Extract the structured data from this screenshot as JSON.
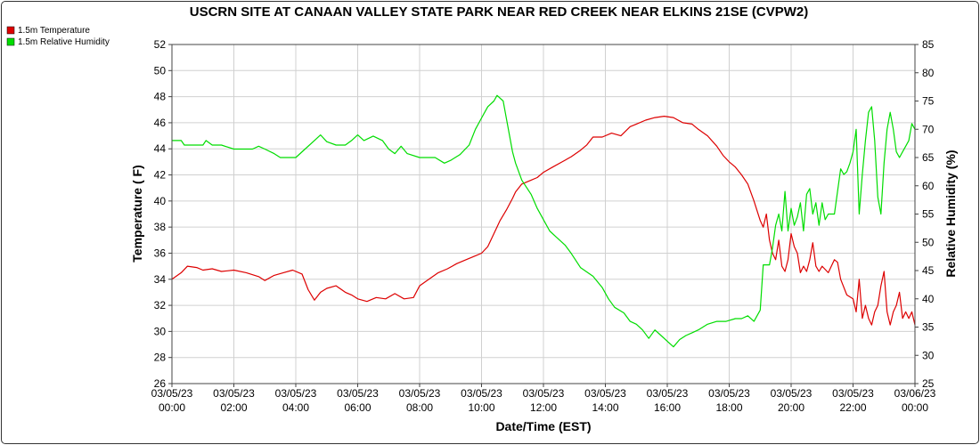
{
  "chart_data": {
    "type": "line",
    "title": "USCRN SITE AT CANAAN VALLEY STATE PARK NEAR RED CREEK NEAR ELKINS 21SE (CVPW2)",
    "xlabel": "Date/Time (EST)",
    "ylabel_left": "Temperature ( F)",
    "ylabel_right": "Relative Humidity (%)",
    "legend_position": "top-left",
    "grid": true,
    "x_range_hours": [
      0,
      24
    ],
    "y_left_range": [
      26,
      52
    ],
    "y_right_range": [
      25,
      85
    ],
    "x_ticks": [
      {
        "hour": 0,
        "date": "03/05/23",
        "time": "00:00"
      },
      {
        "hour": 2,
        "date": "03/05/23",
        "time": "02:00"
      },
      {
        "hour": 4,
        "date": "03/05/23",
        "time": "04:00"
      },
      {
        "hour": 6,
        "date": "03/05/23",
        "time": "06:00"
      },
      {
        "hour": 8,
        "date": "03/05/23",
        "time": "08:00"
      },
      {
        "hour": 10,
        "date": "03/05/23",
        "time": "10:00"
      },
      {
        "hour": 12,
        "date": "03/05/23",
        "time": "12:00"
      },
      {
        "hour": 14,
        "date": "03/05/23",
        "time": "14:00"
      },
      {
        "hour": 16,
        "date": "03/05/23",
        "time": "16:00"
      },
      {
        "hour": 18,
        "date": "03/05/23",
        "time": "18:00"
      },
      {
        "hour": 20,
        "date": "03/05/23",
        "time": "20:00"
      },
      {
        "hour": 22,
        "date": "03/05/23",
        "time": "22:00"
      },
      {
        "hour": 24,
        "date": "03/06/23",
        "time": "00:00"
      }
    ],
    "y_left_ticks": [
      26,
      28,
      30,
      32,
      34,
      36,
      38,
      40,
      42,
      44,
      46,
      48,
      50,
      52
    ],
    "y_right_ticks": [
      25,
      30,
      35,
      40,
      45,
      50,
      55,
      60,
      65,
      70,
      75,
      80,
      85
    ],
    "series": [
      {
        "name": "1.5m Temperature",
        "color": "#dd0000",
        "axis": "left",
        "points": [
          [
            0.0,
            34.0
          ],
          [
            0.3,
            34.5
          ],
          [
            0.5,
            35.0
          ],
          [
            0.8,
            34.9
          ],
          [
            1.0,
            34.7
          ],
          [
            1.3,
            34.8
          ],
          [
            1.6,
            34.6
          ],
          [
            2.0,
            34.7
          ],
          [
            2.4,
            34.5
          ],
          [
            2.8,
            34.2
          ],
          [
            3.0,
            33.9
          ],
          [
            3.3,
            34.3
          ],
          [
            3.6,
            34.5
          ],
          [
            3.9,
            34.7
          ],
          [
            4.2,
            34.4
          ],
          [
            4.4,
            33.2
          ],
          [
            4.6,
            32.4
          ],
          [
            4.8,
            33.0
          ],
          [
            5.0,
            33.3
          ],
          [
            5.3,
            33.5
          ],
          [
            5.6,
            33.0
          ],
          [
            5.8,
            32.8
          ],
          [
            6.0,
            32.5
          ],
          [
            6.3,
            32.3
          ],
          [
            6.6,
            32.6
          ],
          [
            6.9,
            32.5
          ],
          [
            7.2,
            32.9
          ],
          [
            7.5,
            32.5
          ],
          [
            7.8,
            32.6
          ],
          [
            8.0,
            33.5
          ],
          [
            8.3,
            34.0
          ],
          [
            8.6,
            34.5
          ],
          [
            8.9,
            34.8
          ],
          [
            9.2,
            35.2
          ],
          [
            9.5,
            35.5
          ],
          [
            9.8,
            35.8
          ],
          [
            10.0,
            36.0
          ],
          [
            10.2,
            36.5
          ],
          [
            10.4,
            37.5
          ],
          [
            10.6,
            38.5
          ],
          [
            10.8,
            39.3
          ],
          [
            11.0,
            40.2
          ],
          [
            11.1,
            40.7
          ],
          [
            11.3,
            41.3
          ],
          [
            11.6,
            41.6
          ],
          [
            11.8,
            41.8
          ],
          [
            12.0,
            42.2
          ],
          [
            12.3,
            42.6
          ],
          [
            12.6,
            43.0
          ],
          [
            12.9,
            43.4
          ],
          [
            13.2,
            43.9
          ],
          [
            13.4,
            44.3
          ],
          [
            13.6,
            44.9
          ],
          [
            13.9,
            44.9
          ],
          [
            14.2,
            45.2
          ],
          [
            14.5,
            45.0
          ],
          [
            14.8,
            45.7
          ],
          [
            15.0,
            45.9
          ],
          [
            15.3,
            46.2
          ],
          [
            15.6,
            46.4
          ],
          [
            15.9,
            46.5
          ],
          [
            16.2,
            46.4
          ],
          [
            16.5,
            46.0
          ],
          [
            16.8,
            45.9
          ],
          [
            17.0,
            45.5
          ],
          [
            17.3,
            45.0
          ],
          [
            17.6,
            44.2
          ],
          [
            17.8,
            43.5
          ],
          [
            18.0,
            43.0
          ],
          [
            18.2,
            42.6
          ],
          [
            18.4,
            42.0
          ],
          [
            18.6,
            41.3
          ],
          [
            18.8,
            40.0
          ],
          [
            19.0,
            38.5
          ],
          [
            19.1,
            38.0
          ],
          [
            19.2,
            39.0
          ],
          [
            19.3,
            37.0
          ],
          [
            19.4,
            36.0
          ],
          [
            19.5,
            35.5
          ],
          [
            19.6,
            37.0
          ],
          [
            19.7,
            35.0
          ],
          [
            19.8,
            34.6
          ],
          [
            19.9,
            35.5
          ],
          [
            20.0,
            37.5
          ],
          [
            20.1,
            36.5
          ],
          [
            20.2,
            36.0
          ],
          [
            20.3,
            34.5
          ],
          [
            20.4,
            35.0
          ],
          [
            20.5,
            34.6
          ],
          [
            20.6,
            35.5
          ],
          [
            20.7,
            36.8
          ],
          [
            20.8,
            35.0
          ],
          [
            20.9,
            34.6
          ],
          [
            21.0,
            35.0
          ],
          [
            21.2,
            34.5
          ],
          [
            21.4,
            35.5
          ],
          [
            21.5,
            35.3
          ],
          [
            21.6,
            34.0
          ],
          [
            21.8,
            32.8
          ],
          [
            22.0,
            32.5
          ],
          [
            22.1,
            31.5
          ],
          [
            22.2,
            34.0
          ],
          [
            22.3,
            31.0
          ],
          [
            22.4,
            32.0
          ],
          [
            22.5,
            31.0
          ],
          [
            22.6,
            30.5
          ],
          [
            22.7,
            31.5
          ],
          [
            22.8,
            32.0
          ],
          [
            22.9,
            33.5
          ],
          [
            23.0,
            34.6
          ],
          [
            23.1,
            31.5
          ],
          [
            23.2,
            30.5
          ],
          [
            23.3,
            31.5
          ],
          [
            23.4,
            32.0
          ],
          [
            23.5,
            33.0
          ],
          [
            23.6,
            31.0
          ],
          [
            23.7,
            31.5
          ],
          [
            23.8,
            31.0
          ],
          [
            23.9,
            31.5
          ],
          [
            24.0,
            30.5
          ]
        ]
      },
      {
        "name": "1.5m Relative Humidity",
        "color": "#00dd00",
        "axis": "right",
        "points": [
          [
            0.0,
            68.0
          ],
          [
            0.3,
            68.0
          ],
          [
            0.4,
            67.2
          ],
          [
            1.0,
            67.2
          ],
          [
            1.1,
            68.0
          ],
          [
            1.3,
            67.2
          ],
          [
            1.6,
            67.2
          ],
          [
            2.0,
            66.5
          ],
          [
            2.6,
            66.5
          ],
          [
            2.8,
            67.0
          ],
          [
            3.0,
            66.5
          ],
          [
            3.3,
            65.7
          ],
          [
            3.5,
            65.0
          ],
          [
            4.0,
            65.0
          ],
          [
            4.3,
            66.5
          ],
          [
            4.6,
            68.0
          ],
          [
            4.8,
            69.0
          ],
          [
            5.0,
            67.8
          ],
          [
            5.3,
            67.2
          ],
          [
            5.6,
            67.2
          ],
          [
            5.8,
            68.0
          ],
          [
            6.0,
            69.0
          ],
          [
            6.2,
            68.0
          ],
          [
            6.5,
            68.8
          ],
          [
            6.8,
            68.0
          ],
          [
            7.0,
            66.5
          ],
          [
            7.2,
            65.7
          ],
          [
            7.4,
            67.0
          ],
          [
            7.6,
            65.7
          ],
          [
            8.0,
            65.0
          ],
          [
            8.5,
            65.0
          ],
          [
            8.8,
            64.0
          ],
          [
            9.0,
            64.5
          ],
          [
            9.3,
            65.5
          ],
          [
            9.6,
            67.2
          ],
          [
            9.8,
            70.0
          ],
          [
            10.0,
            72.0
          ],
          [
            10.2,
            74.0
          ],
          [
            10.4,
            75.0
          ],
          [
            10.5,
            76.0
          ],
          [
            10.7,
            75.0
          ],
          [
            10.8,
            72.0
          ],
          [
            10.9,
            69.0
          ],
          [
            11.0,
            66.0
          ],
          [
            11.1,
            64.0
          ],
          [
            11.3,
            61.0
          ],
          [
            11.6,
            58.5
          ],
          [
            11.8,
            56.0
          ],
          [
            12.0,
            54.0
          ],
          [
            12.2,
            52.0
          ],
          [
            12.4,
            51.0
          ],
          [
            12.7,
            49.5
          ],
          [
            12.9,
            48.0
          ],
          [
            13.2,
            45.5
          ],
          [
            13.6,
            44.0
          ],
          [
            13.9,
            42.0
          ],
          [
            14.1,
            40.0
          ],
          [
            14.3,
            38.5
          ],
          [
            14.6,
            37.5
          ],
          [
            14.8,
            36.0
          ],
          [
            15.0,
            35.5
          ],
          [
            15.2,
            34.5
          ],
          [
            15.4,
            33.0
          ],
          [
            15.6,
            34.5
          ],
          [
            15.8,
            33.5
          ],
          [
            16.0,
            32.5
          ],
          [
            16.2,
            31.5
          ],
          [
            16.4,
            32.8
          ],
          [
            16.6,
            33.5
          ],
          [
            16.8,
            34.0
          ],
          [
            17.0,
            34.5
          ],
          [
            17.3,
            35.5
          ],
          [
            17.6,
            36.0
          ],
          [
            17.9,
            36.0
          ],
          [
            18.2,
            36.5
          ],
          [
            18.4,
            36.5
          ],
          [
            18.6,
            37.0
          ],
          [
            18.8,
            36.0
          ],
          [
            19.0,
            38.0
          ],
          [
            19.1,
            46.0
          ],
          [
            19.3,
            46.0
          ],
          [
            19.4,
            49.0
          ],
          [
            19.5,
            53.0
          ],
          [
            19.6,
            55.0
          ],
          [
            19.7,
            52.0
          ],
          [
            19.8,
            59.0
          ],
          [
            19.9,
            52.0
          ],
          [
            20.0,
            56.0
          ],
          [
            20.1,
            53.0
          ],
          [
            20.2,
            54.5
          ],
          [
            20.3,
            57.0
          ],
          [
            20.4,
            52.0
          ],
          [
            20.5,
            58.5
          ],
          [
            20.6,
            59.5
          ],
          [
            20.7,
            55.0
          ],
          [
            20.8,
            57.0
          ],
          [
            20.9,
            53.0
          ],
          [
            21.0,
            57.0
          ],
          [
            21.1,
            54.0
          ],
          [
            21.2,
            55.0
          ],
          [
            21.4,
            55.0
          ],
          [
            21.5,
            59.0
          ],
          [
            21.6,
            63.0
          ],
          [
            21.7,
            62.0
          ],
          [
            21.8,
            62.5
          ],
          [
            21.9,
            64.0
          ],
          [
            22.0,
            66.0
          ],
          [
            22.1,
            70.0
          ],
          [
            22.2,
            55.0
          ],
          [
            22.3,
            62.0
          ],
          [
            22.4,
            68.0
          ],
          [
            22.5,
            73.0
          ],
          [
            22.6,
            74.0
          ],
          [
            22.7,
            68.0
          ],
          [
            22.8,
            58.0
          ],
          [
            22.9,
            55.0
          ],
          [
            23.0,
            64.0
          ],
          [
            23.1,
            70.0
          ],
          [
            23.2,
            73.0
          ],
          [
            23.3,
            70.0
          ],
          [
            23.4,
            66.0
          ],
          [
            23.5,
            65.0
          ],
          [
            23.6,
            66.0
          ],
          [
            23.7,
            67.0
          ],
          [
            23.8,
            68.0
          ],
          [
            23.9,
            71.0
          ],
          [
            24.0,
            70.0
          ]
        ]
      }
    ]
  }
}
